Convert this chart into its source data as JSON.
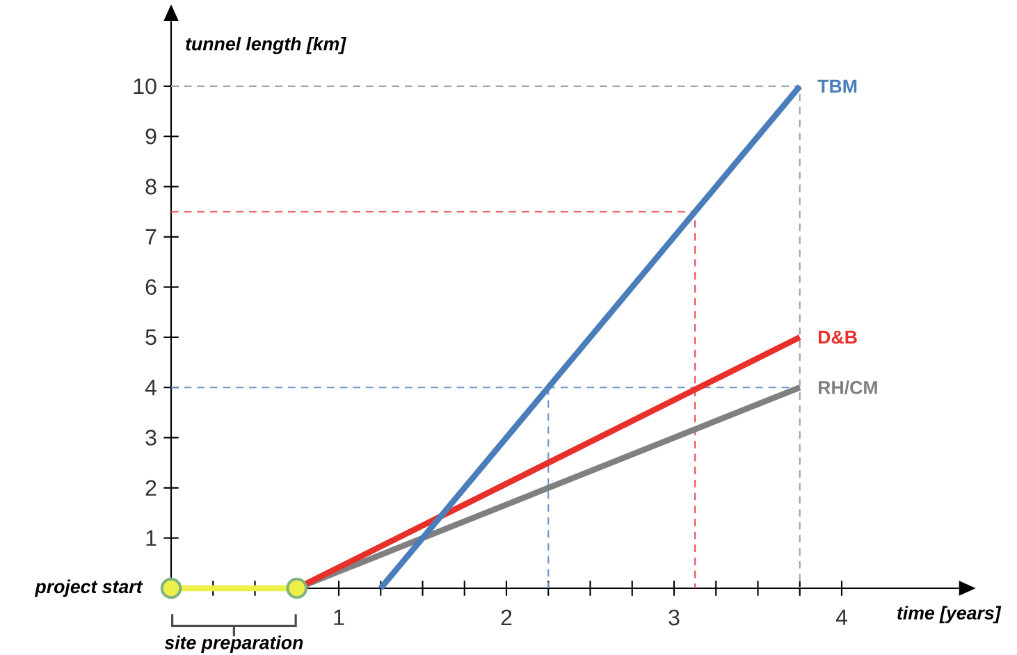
{
  "chart_data": {
    "type": "line",
    "xlabel": "time [years]",
    "ylabel": "tunnel length [km]",
    "xlim": [
      0,
      4.7
    ],
    "ylim": [
      0,
      11.3
    ],
    "xticks": [
      {
        "value": 0.25,
        "label": null
      },
      {
        "value": 0.5,
        "label": null
      },
      {
        "value": 0.75,
        "label": null
      },
      1,
      {
        "value": 1.25,
        "label": null
      },
      {
        "value": 1.5,
        "label": null
      },
      {
        "value": 1.75,
        "label": null
      },
      2,
      {
        "value": 2.25,
        "label": null
      },
      {
        "value": 2.5,
        "label": null
      },
      {
        "value": 2.75,
        "label": null
      },
      3,
      {
        "value": 3.25,
        "label": null
      },
      {
        "value": 3.5,
        "label": null
      },
      {
        "value": 3.75,
        "label": null
      },
      4
    ],
    "yticks": [
      1,
      2,
      3,
      4,
      5,
      6,
      7,
      8,
      9,
      10
    ],
    "series": [
      {
        "color": "#9aa3b2",
        "line_style": "dashed",
        "x": [
          0,
          3.75,
          3.75
        ],
        "values": [
          10,
          10,
          0
        ]
      },
      {
        "color": "#e8505a",
        "line_style": "dashed",
        "x": [
          0,
          3.125,
          3.125
        ],
        "values": [
          7.5,
          7.5,
          0
        ]
      },
      {
        "color": "#6f95cf",
        "line_style": "dashed",
        "x": [
          0,
          3.75
        ],
        "values": [
          4,
          4
        ]
      },
      {
        "color": "#6f95cf",
        "line_style": "dashed",
        "x": [
          2.25,
          2.25
        ],
        "values": [
          4,
          0
        ]
      },
      {
        "color": "#eef04a",
        "marker": "circle",
        "x": [
          0,
          0.75
        ],
        "values": [
          0,
          0
        ]
      },
      {
        "name": "RH/CM",
        "color": "#808080",
        "x": [
          0.75,
          3.75
        ],
        "values": [
          0,
          4
        ]
      },
      {
        "name": "D&B",
        "color": "#e8302a",
        "x": [
          0.75,
          3.75
        ],
        "values": [
          0,
          5
        ]
      },
      {
        "name": "TBM",
        "color": "#4a7ebb",
        "x": [
          1.25,
          3.75
        ],
        "values": [
          0,
          10
        ]
      }
    ],
    "annotations": [
      {
        "text": "project start",
        "x": 0,
        "y": 0
      },
      "site preparation"
    ]
  }
}
